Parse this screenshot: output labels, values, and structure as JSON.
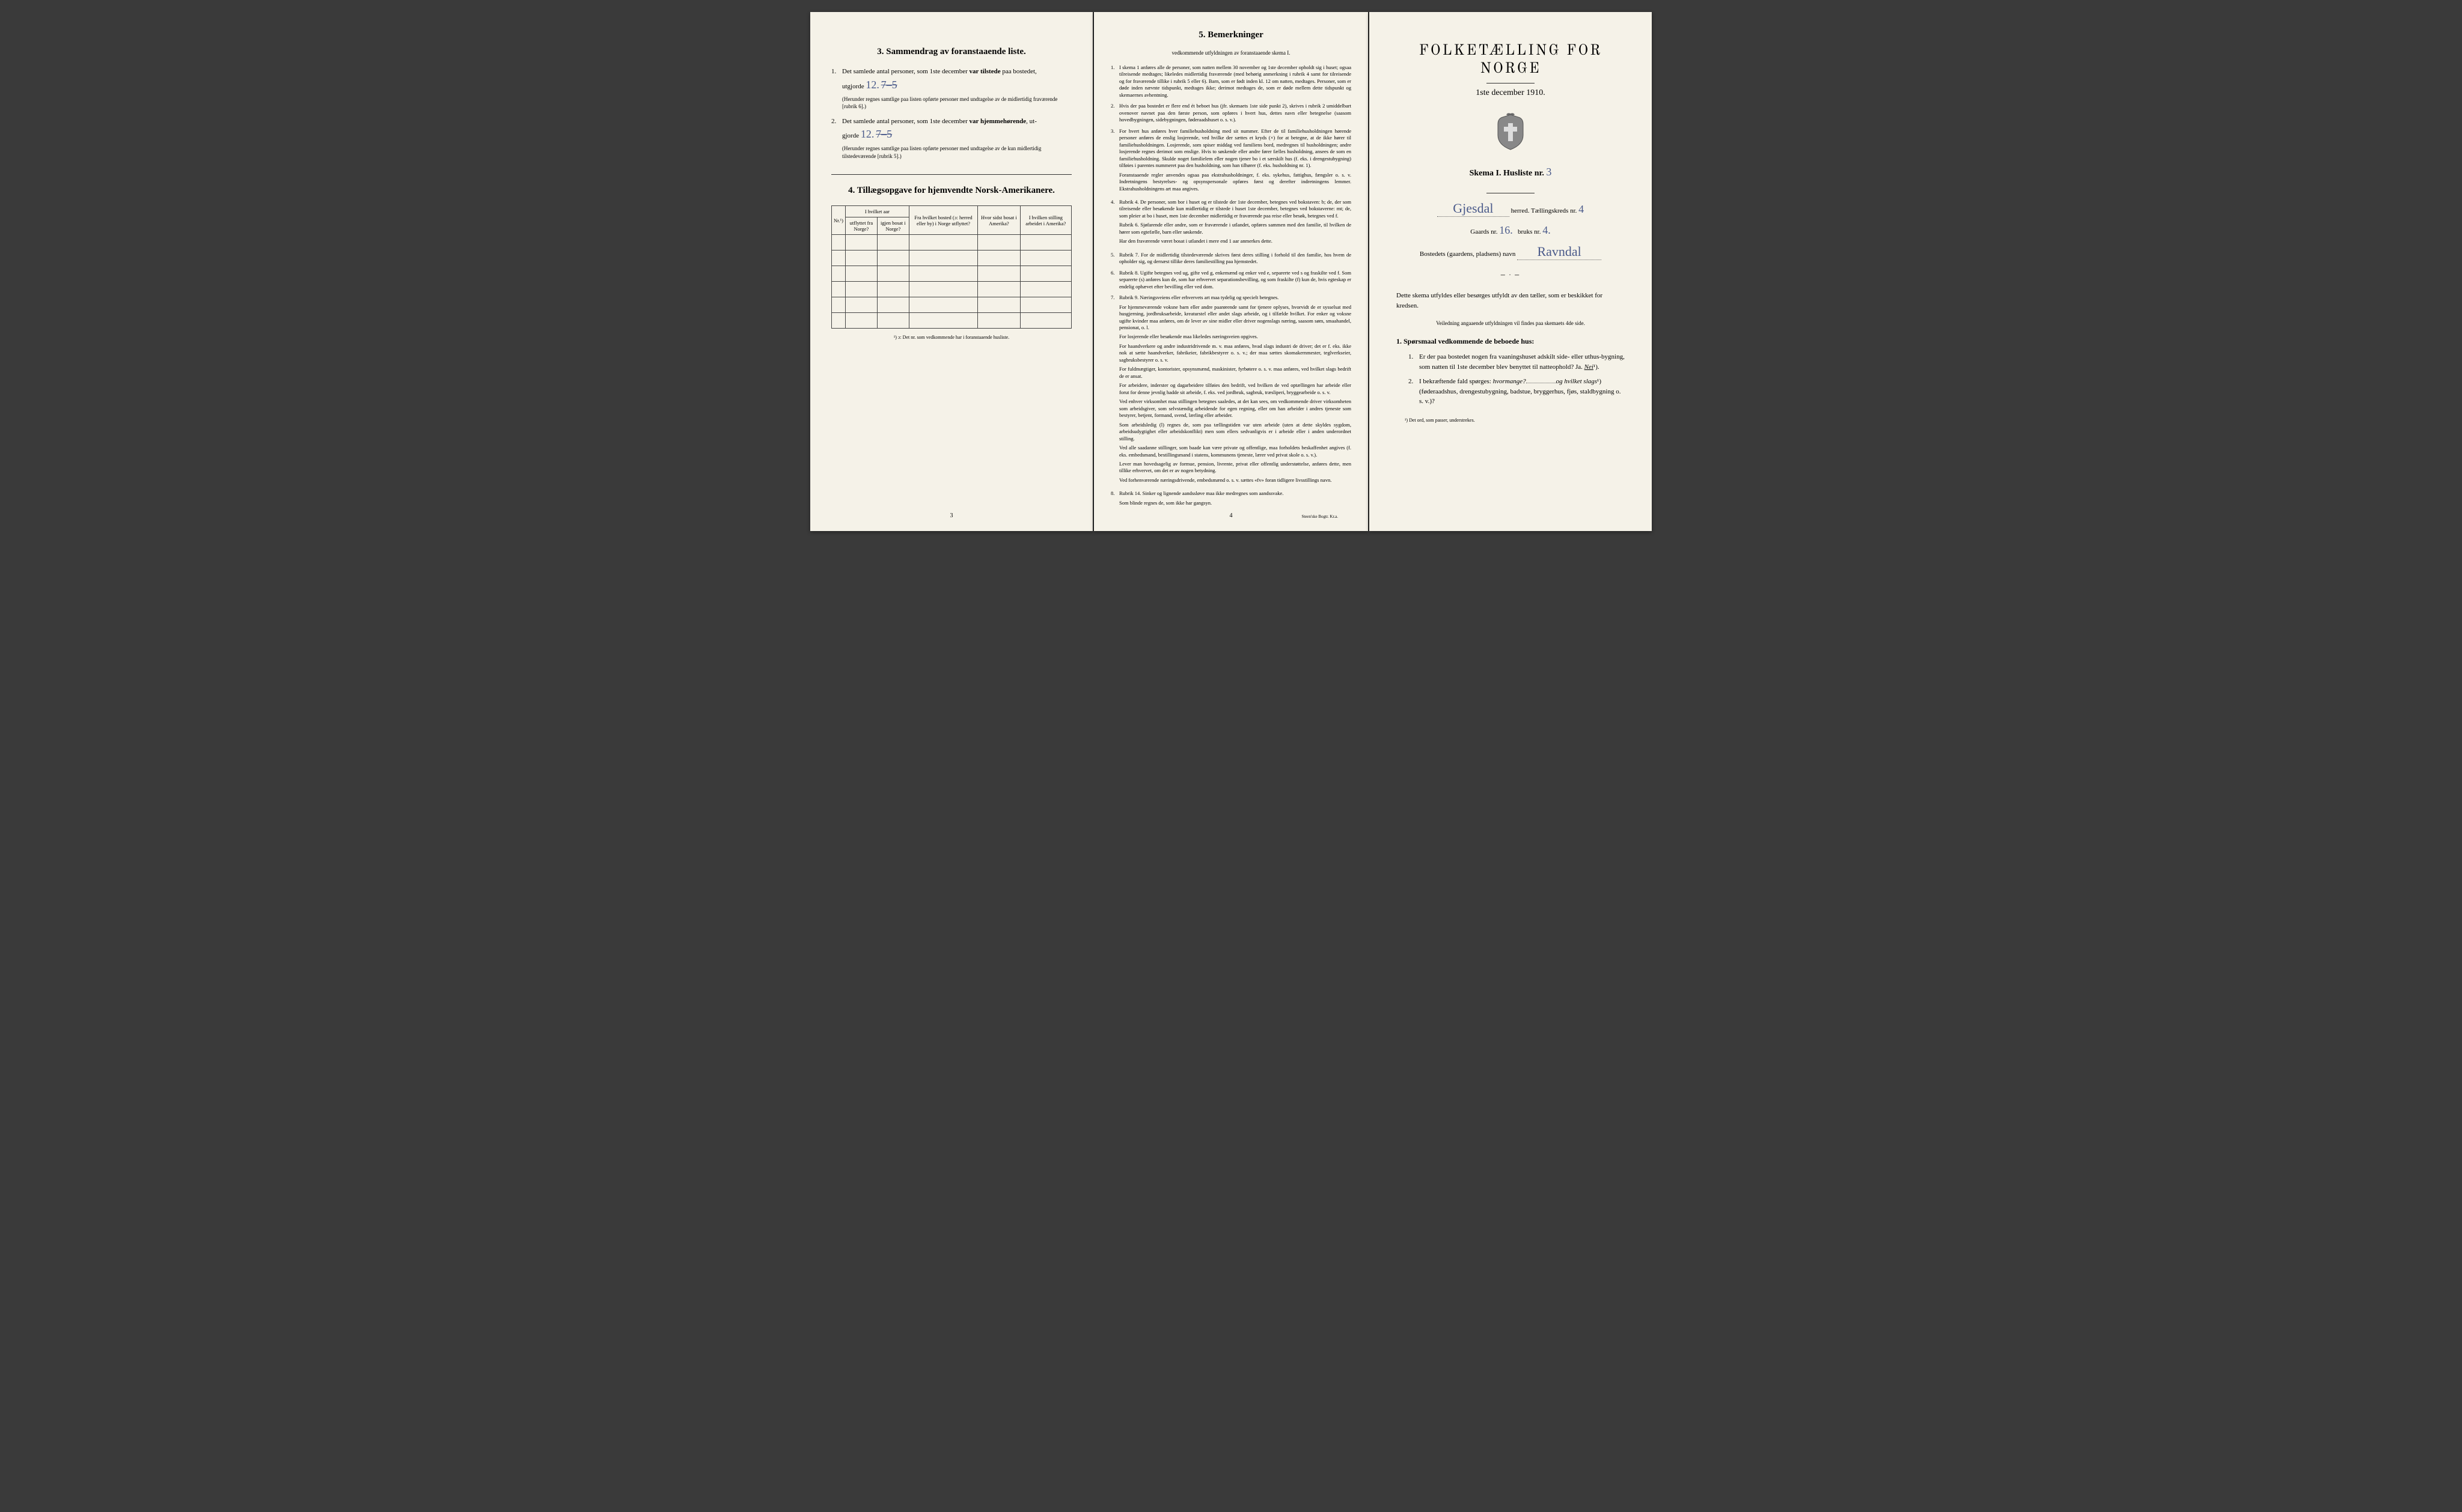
{
  "colors": {
    "paper": "#f5f2e8",
    "ink": "#222222",
    "handwriting": "#4a5a8a",
    "background": "#3a3a3a"
  },
  "page1": {
    "section3": {
      "heading": "3.   Sammendrag av foranstaaende liste.",
      "item1": {
        "num": "1.",
        "text_before": "Det samlede antal personer, som 1ste december ",
        "text_bold": "var tilstede",
        "text_after": " paa bostedet,",
        "utgjorde_label": "utgjorde",
        "value": "12.",
        "struck": "7–5",
        "fine": "(Herunder regnes samtlige paa listen opførte personer med undtagelse av de midlertidig fraværende [rubrik 6].)"
      },
      "item2": {
        "num": "2.",
        "text_before": "Det samlede antal personer, som 1ste december ",
        "text_bold": "var hjemmehørende",
        "text_after": ", ut-",
        "gjorde_label": "gjorde",
        "value": "12.",
        "struck": "7–5",
        "fine": "(Herunder regnes samtlige paa listen opførte personer med undtagelse av de kun midlertidig tilstedeværende [rubrik 5].)"
      }
    },
    "section4": {
      "heading": "4.   Tillægsopgave for hjemvendte Norsk-Amerikanere.",
      "columns": {
        "nr": "Nr.¹)",
        "col1a": "I hvilket aar",
        "col1a_sub1": "utflyttet fra Norge?",
        "col1a_sub2": "igjen bosat i Norge?",
        "col2": "Fra hvilket bosted (ɔ: herred eller by) i Norge utflyttet?",
        "col3": "Hvor sidst bosat i Amerika?",
        "col4": "I hvilken stilling arbeidet i Amerika?"
      },
      "footnote": "¹) ɔ: Det nr. som vedkommende har i foranstaaende husliste.",
      "rows": 6
    },
    "page_num": "3"
  },
  "page2": {
    "heading": "5.   Bemerkninger",
    "subheading": "vedkommende utfyldningen av foranstaaende skema I.",
    "items": [
      {
        "num": "1.",
        "text": "I skema 1 anføres alle de personer, som natten mellem 30 november og 1ste december opholdt sig i huset; ogsaa tilreisende medtages; likeledes midlertidig fraværende (med behørig anmerkning i rubrik 4 samt for tilreisende og for fraværende tillike i rubrik 5 eller 6). Barn, som er født inden kl. 12 om natten, medtages. Personer, som er døde inden nævnte tidspunkt, medtages ikke; derimot medtages de, som er døde mellem dette tidspunkt og skemaernes avhentning."
      },
      {
        "num": "2.",
        "text": "Hvis der paa bostedet er flere end ét beboet hus (jfr. skemaets 1ste side punkt 2), skrives i rubrik 2 umiddelbart ovenover navnet paa den første person, som opføres i hvert hus, dettes navn eller betegnelse (saasom hovedbygningen, sidebygningen, føderaadshuset o. s. v.)."
      },
      {
        "num": "3.",
        "paras": [
          "For hvert hus anføres hver familiehusholdning med sit nummer. Efter de til familiehusholdningen hørende personer anføres de enslig losjerende, ved hvilke der sættes et kryds (×) for at betegne, at de ikke hører til familiehusholdningen. Losjerende, som spiser middag ved familiens bord, medregnes til husholdningen; andre losjerende regnes derimot som enslige. Hvis to søskende eller andre fører fælles husholdning, ansees de som en familiehusholdning. Skulde noget familielem eller nogen tjener bo i et særskilt hus (f. eks. i drengestubygning) tilføies i parentes nummeret paa den husholdning, som han tilhører (f. eks. husholdning nr. 1).",
          "Foranstaaende regler anvendes ogsaa paa ekstrahusholdninger, f. eks. sykehus, fattighus, fængsler o. s. v. Indretningens bestyrelses- og opsynspersonale opføres først og derefter indretningens lemmer. Ekstrahusholdningens art maa angives."
        ]
      },
      {
        "num": "4.",
        "paras": [
          "Rubrik 4. De personer, som bor i huset og er tilstede der 1ste december, betegnes ved bokstaven: b; de, der som tilreisende eller besøkende kun midlertidig er tilstede i huset 1ste december, betegnes ved bokstaverne: mt; de, som pleier at bo i huset, men 1ste december midlertidig er fraværende paa reise eller besøk, betegnes ved f.",
          "Rubrik 6. Sjøfarende eller andre, som er fraværende i utlandet, opføres sammen med den familie, til hvilken de hører som egtefælle, barn eller søskende.",
          "Har den fraværende været bosat i utlandet i mere end 1 aar anmerkes dette."
        ]
      },
      {
        "num": "5.",
        "text": "Rubrik 7. For de midlertidig tilstedeværende skrives først deres stilling i forhold til den familie, hos hvem de opholder sig, og dernæst tillike deres familiestilling paa hjemstedet."
      },
      {
        "num": "6.",
        "text": "Rubrik 8. Ugifte betegnes ved ug, gifte ved g, enkemænd og enker ved e, separerte ved s og fraskilte ved f. Som separerte (s) anføres kun de, som har erhvervet separationsbevilling, og som fraskilte (f) kun de, hvis egteskap er endelig ophævet efter bevilling eller ved dom."
      },
      {
        "num": "7.",
        "paras": [
          "Rubrik 9. Næringsveiens eller erhvervets art maa tydelig og specielt betegnes.",
          "For hjemmeværende voksne barn eller andre paarørende samt for tjenere oplyses, hvorvidt de er sysselsat med husgjerning, jordbruksarbeide, kreaturstel eller andet slags arbeide, og i tilfælde hvilket. For enker og voksne ugifte kvinder maa anføres, om de lever av sine midler eller driver nogenslags næring, saasom søm, smaahandel, pensionat, o. l.",
          "For losjerende eller besøkende maa likeledes næringsveien opgives.",
          "For haandverkere og andre industridrivende m. v. maa anføres, hvad slags industri de driver; det er f. eks. ikke nok at sætte haandverker, fabrikeier, fabrikbestyrer o. s. v.; der maa sættes skomakernmester, teglverkseier, sagbruksbestyrer o. s. v.",
          "For fuldmægtiger, kontorister, opsynsmænd, maskinister, fyrbøtere o. s. v. maa anføres, ved hvilket slags bedrift de er ansat.",
          "For arbeidere, inderster og dagarbeidere tilføies den bedrift, ved hvilken de ved optællingen har arbeide eller forut for denne jevnlig hadde sit arbeide, f. eks. ved jordbruk, sagbruk, træsliperi, bryggearbeide o. s. v.",
          "Ved enhver virksomhet maa stillingen betegnes saaledes, at det kan sees, om vedkommende driver virksomheten som arbeidsgiver, som selvstændig arbeidende for egen regning, eller om han arbeider i andres tjeneste som bestyrer, betjent, formand, svend, lærling eller arbeider.",
          "Som arbeidsledig (l) regnes de, som paa tællingstiden var uten arbeide (uten at dette skyldes sygdom, arbeidsudygtighet eller arbeidskonflikt) men som ellers sedvanligvis er i arbeide eller i anden underordnet stilling.",
          "Ved alle saadanne stillinger, som baade kan være private og offentlige, maa forholdets beskaffenhet angives (f. eks. embedsmand, bestillingsmand i statens, kommunens tjeneste, lærer ved privat skole o. s. v.).",
          "Lever man hovedsagelig av formue, pension, livrente, privat eller offentlig understøttelse, anføres dette, men tillike erhvervet, om det er av nogen betydning.",
          "Ved forhenværende næringsdrivende, embedsmænd o. s. v. sættes «fv» foran tidligere livsstillings navn."
        ]
      },
      {
        "num": "8.",
        "paras": [
          "Rubrik 14. Sinker og lignende aandssløve maa ikke medregnes som aandssvake.",
          "Som blinde regnes de, som ikke har gangsyn."
        ]
      }
    ],
    "page_num": "4",
    "imprint": "Steen'ske Bogtr.  Kr.a."
  },
  "page3": {
    "title": "FOLKETÆLLING FOR NORGE",
    "date": "1ste december 1910.",
    "skema_label": "Skema I.   Husliste nr.",
    "husliste_nr": "3",
    "herred_label": "herred.  Tællingskreds nr.",
    "herred_value": "Gjesdal",
    "kreds_nr": "4",
    "gaards_label": "Gaards nr.",
    "gaards_nr": "16.",
    "bruks_label": "bruks nr.",
    "bruks_nr": "4.",
    "bosted_label": "Bostedets (gaardens, pladsens) navn",
    "bosted_value": "Ravndal",
    "instruction": "Dette skema utfyldes eller besørges utfyldt av den tæller, som er beskikket for kredsen.",
    "instruction_sub": "Veiledning angaaende utfyldningen vil findes paa skemaets 4de side.",
    "q_heading": "1. Spørsmaal vedkommende de beboede hus:",
    "q1": {
      "num": "1.",
      "text": "Er der paa bostedet nogen fra vaaningshuset adskilt side- eller uthus-bygning, som natten til 1ste december blev benyttet til natteophold?   Ja.   ",
      "nei": "Nei",
      "sup": "¹)."
    },
    "q2": {
      "num": "2.",
      "text_a": "I bekræftende fald spørges: ",
      "hvormange": "hvormange?",
      "text_b": "og hvilket slags",
      "sup": "¹)",
      "text_c": "(føderaadshus, drengestubygning, badstue, bryggerhus, fjøs, staldbygning o. s. v.)?"
    },
    "footnote": "¹) Det ord, som passer, understrekes."
  }
}
